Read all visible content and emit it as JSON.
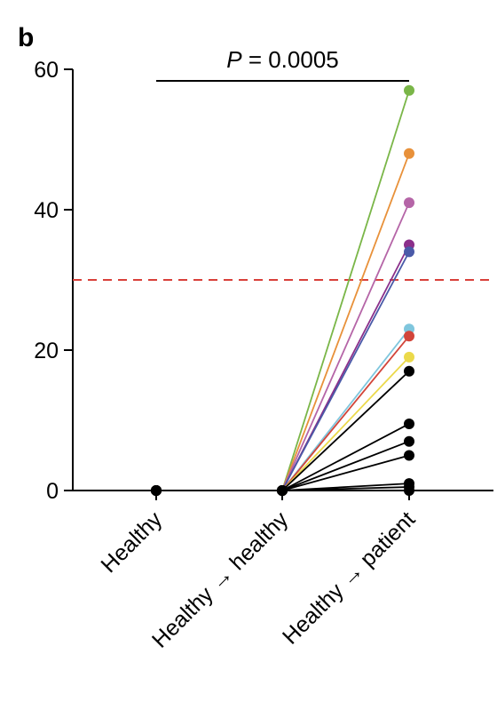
{
  "panel_label": "b",
  "chart_data": {
    "type": "line",
    "categories": [
      "Healthy",
      "Healthy → healthy",
      "Healthy → patient"
    ],
    "ylim": [
      0,
      60
    ],
    "yticks": [
      0,
      20,
      40,
      60
    ],
    "grid": false,
    "threshold": {
      "value": 30,
      "color": "#d9403a"
    },
    "annotation": {
      "p_symbol": "P",
      "p_text": " = 0.0005",
      "from_category": 0,
      "to_category": 2
    },
    "series": [
      {
        "color": "#7ab648",
        "values": [
          0,
          0,
          57
        ]
      },
      {
        "color": "#e8913a",
        "values": [
          0,
          0,
          48
        ]
      },
      {
        "color": "#b565a7",
        "values": [
          0,
          0,
          41
        ]
      },
      {
        "color": "#8b2f8a",
        "values": [
          0,
          0,
          35
        ]
      },
      {
        "color": "#4a5aa8",
        "values": [
          0,
          0,
          34
        ]
      },
      {
        "color": "#7fc6dd",
        "values": [
          0,
          0,
          23
        ]
      },
      {
        "color": "#d2453a",
        "values": [
          0,
          0,
          22
        ]
      },
      {
        "color": "#ebd94a",
        "values": [
          0,
          0,
          19
        ]
      },
      {
        "color": "#000000",
        "values": [
          0,
          0,
          17
        ]
      },
      {
        "color": "#000000",
        "values": [
          0,
          0,
          9.5
        ]
      },
      {
        "color": "#000000",
        "values": [
          0,
          0,
          7
        ]
      },
      {
        "color": "#000000",
        "values": [
          0,
          0,
          5
        ]
      },
      {
        "color": "#000000",
        "values": [
          0,
          0,
          1
        ]
      },
      {
        "color": "#000000",
        "values": [
          0,
          0,
          0.5
        ]
      },
      {
        "color": "#000000",
        "values": [
          0,
          0,
          0
        ]
      }
    ]
  }
}
